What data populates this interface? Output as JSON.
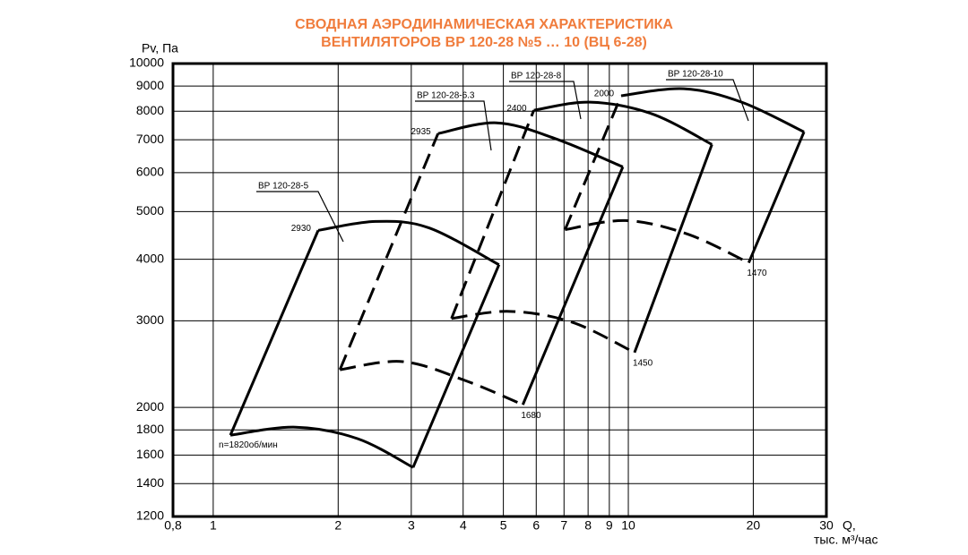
{
  "chart_data": {
    "type": "line",
    "title": [
      "СВОДНАЯ АЭРОДИНАМИЧЕСКАЯ ХАРАКТЕРИСТИКА",
      "ВЕНТИЛЯТОРОВ ВР 120-28 №5 … 10 (ВЦ 6-28)"
    ],
    "title_color": "#f07c3c",
    "y_label": "Pv, Па",
    "x_label": "Q,",
    "x_unit": "тыс. м³/час",
    "xscale": "log",
    "yscale": "log",
    "grid": true,
    "color": "#000000",
    "xlim": [
      0.8,
      30
    ],
    "ylim": [
      1200,
      10000
    ],
    "xticks": [
      {
        "value": 0.8,
        "label": "0,8"
      },
      1,
      2,
      3,
      4,
      5,
      6,
      7,
      8,
      9,
      10,
      20,
      30
    ],
    "yticks": [
      1200,
      1400,
      1600,
      1800,
      2000,
      3000,
      4000,
      5000,
      6000,
      7000,
      8000,
      9000,
      10000
    ],
    "fans": [
      {
        "name": "ВР 120-28-5",
        "upper": {
          "label": "2930",
          "x": [
            1.79,
            2.46,
            3.31,
            4.88
          ],
          "values": [
            4580,
            4775,
            4634,
            3900
          ],
          "dashed": false
        },
        "lower": {
          "label": "n=1820об/мин",
          "x": [
            1.1,
            1.58,
            2.23,
            3.03
          ],
          "values": [
            1756,
            1823,
            1727,
            1510
          ],
          "dashed": false
        },
        "left_dashed": false
      },
      {
        "name": "ВР 120-28-6.3",
        "upper": {
          "label": "2935",
          "x": [
            3.48,
            4.81,
            6.63,
            9.7
          ],
          "values": [
            7206,
            7577,
            7050,
            6166
          ],
          "dashed": false
        },
        "lower": {
          "label": "1680",
          "x": [
            2.02,
            2.86,
            4.04,
            5.57
          ],
          "values": [
            2386,
            2478,
            2269,
            2025
          ],
          "dashed": true
        },
        "left_dashed": true
      },
      {
        "name": "ВР 120-28-8",
        "upper": {
          "label": "2400",
          "x": [
            5.92,
            8.08,
            11.4,
            15.9
          ],
          "values": [
            8036,
            8347,
            7903,
            6848
          ],
          "dashed": false
        },
        "lower": {
          "label": "1450",
          "x": [
            3.75,
            5.17,
            7.32,
            10.35
          ],
          "values": [
            3032,
            3135,
            2980,
            2585
          ],
          "dashed": true
        },
        "left_dashed": true
      },
      {
        "name": "ВР 120-28-10",
        "upper": {
          "label": "2000",
          "x": [
            9.61,
            13.6,
            18.75,
            26.5
          ],
          "values": [
            8600,
            8889,
            8347,
            7262
          ],
          "dashed": false
        },
        "lower": {
          "label": "1470",
          "x": [
            7.04,
            9.85,
            13.9,
            19.5
          ],
          "values": [
            4595,
            4795,
            4500,
            3935
          ],
          "dashed": true
        },
        "left_dashed": true
      }
    ]
  }
}
